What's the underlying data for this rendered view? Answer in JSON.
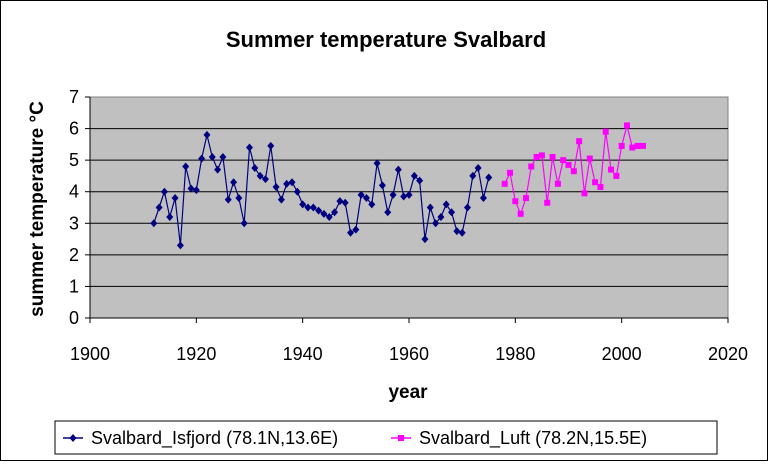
{
  "chart_data": {
    "type": "line",
    "title": "Summer temperature Svalbard",
    "xlabel": "year",
    "ylabel": "summer temperature °C",
    "xlim": [
      1900,
      2020
    ],
    "ylim": [
      0,
      7
    ],
    "x_ticks": [
      1900,
      1920,
      1940,
      1960,
      1980,
      2000,
      2020
    ],
    "y_ticks": [
      0,
      1,
      2,
      3,
      4,
      5,
      6,
      7
    ],
    "grid": "horizontal",
    "plot_background": "#c0c0c0",
    "legend_position": "bottom",
    "series": [
      {
        "name": "Svalbard_Isfjord (78.1N,13.6E)",
        "color": "#000080",
        "marker": "diamond",
        "x": [
          1912,
          1913,
          1914,
          1915,
          1916,
          1917,
          1918,
          1919,
          1920,
          1921,
          1922,
          1923,
          1924,
          1925,
          1926,
          1927,
          1928,
          1929,
          1930,
          1931,
          1932,
          1933,
          1934,
          1935,
          1936,
          1937,
          1938,
          1939,
          1940,
          1941,
          1942,
          1943,
          1944,
          1945,
          1946,
          1947,
          1948,
          1949,
          1950,
          1951,
          1952,
          1953,
          1954,
          1955,
          1956,
          1957,
          1958,
          1959,
          1960,
          1961,
          1962,
          1963,
          1964,
          1965,
          1966,
          1967,
          1968,
          1969,
          1970,
          1971,
          1972,
          1973,
          1974,
          1975
        ],
        "y": [
          3.0,
          3.5,
          4.0,
          3.2,
          3.8,
          2.3,
          4.8,
          4.1,
          4.05,
          5.05,
          5.8,
          5.1,
          4.7,
          5.1,
          3.75,
          4.3,
          3.8,
          3.0,
          5.4,
          4.75,
          4.5,
          4.4,
          5.45,
          4.15,
          3.75,
          4.25,
          4.3,
          4.0,
          3.6,
          3.5,
          3.5,
          3.4,
          3.3,
          3.2,
          3.35,
          3.7,
          3.65,
          2.7,
          2.8,
          3.9,
          3.8,
          3.6,
          4.9,
          4.2,
          3.35,
          3.9,
          4.7,
          3.85,
          3.9,
          4.5,
          4.35,
          2.5,
          3.5,
          3.0,
          3.2,
          3.6,
          3.35,
          2.75,
          2.7,
          3.5,
          4.5,
          4.75,
          3.8,
          4.45
        ]
      },
      {
        "name": "Svalbard_Luft (78.2N,15.5E)",
        "color": "#ff00ff",
        "marker": "square",
        "x": [
          1978,
          1979,
          1980,
          1981,
          1982,
          1983,
          1984,
          1985,
          1986,
          1987,
          1988,
          1989,
          1990,
          1991,
          1992,
          1993,
          1994,
          1995,
          1996,
          1997,
          1998,
          1999,
          2000,
          2001,
          2002,
          2003,
          2004
        ],
        "y": [
          4.25,
          4.6,
          3.7,
          3.3,
          3.8,
          4.8,
          5.1,
          5.15,
          3.65,
          5.1,
          4.25,
          5.0,
          4.85,
          4.65,
          5.6,
          3.95,
          5.05,
          4.3,
          4.15,
          5.9,
          4.7,
          4.5,
          5.45,
          6.1,
          5.4,
          5.45,
          5.45
        ]
      }
    ]
  }
}
